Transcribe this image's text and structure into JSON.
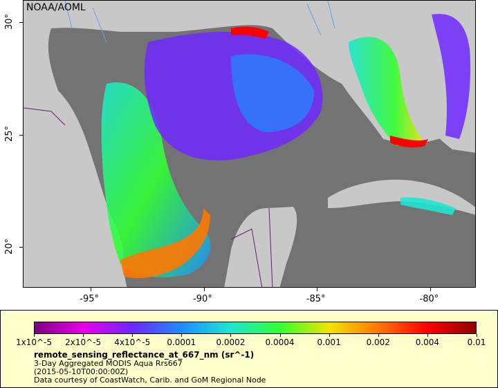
{
  "map": {
    "org_label": "NOAA/AOML",
    "lon_ticks": [
      {
        "value": -95,
        "label": "-95°"
      },
      {
        "value": -90,
        "label": "-90°"
      },
      {
        "value": -85,
        "label": "-85°"
      },
      {
        "value": -80,
        "label": "-80°"
      }
    ],
    "lat_ticks": [
      {
        "value": 30,
        "label": "30°"
      },
      {
        "value": 25,
        "label": "25°"
      },
      {
        "value": 20,
        "label": "20°"
      }
    ],
    "colors": {
      "land": "#c8c8c8",
      "nodata": "#737373",
      "rivers": "#6ea0d8",
      "borders": "#6b1d6b"
    }
  },
  "legend": {
    "colorbar_labels": [
      "1x10^-5",
      "2x10^-5",
      "4x10^-5",
      "0.0001",
      "0.0002",
      "0.0004",
      "0.001",
      "0.002",
      "0.004",
      "0.01"
    ],
    "colorbar_colors": [
      "#7a0080",
      "#e800e8",
      "#6e28ff",
      "#1e8cff",
      "#1ee6d0",
      "#32ff32",
      "#f0e600",
      "#ff7800",
      "#ff0000",
      "#8c0000"
    ],
    "variable": "remote_sensing_reflectance_at_667_nm (sr^-1)",
    "description": "3-Day Aggregated MODIS Aqua Rrs667",
    "time": "(2015-05-10T00:00:00Z)",
    "credit": "Data courtesy of CoastWatch, Carib. and GoM Regional Node"
  }
}
